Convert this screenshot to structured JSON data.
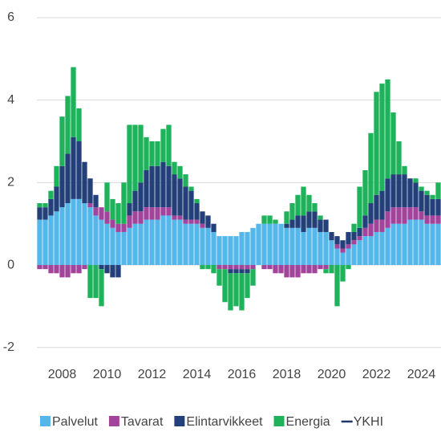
{
  "chart_data": {
    "type": "bar",
    "categories": [
      null,
      null,
      null,
      null,
      "2008",
      null,
      null,
      null,
      null,
      null,
      null,
      null,
      "2010",
      null,
      null,
      null,
      null,
      null,
      null,
      null,
      "2012",
      null,
      null,
      null,
      null,
      null,
      null,
      null,
      "2014",
      null,
      null,
      null,
      null,
      null,
      null,
      null,
      "2016",
      null,
      null,
      null,
      null,
      null,
      null,
      null,
      "2018",
      null,
      null,
      null,
      null,
      null,
      null,
      null,
      "2020",
      null,
      null,
      null,
      null,
      null,
      null,
      null,
      "2022",
      null,
      null,
      null,
      null,
      null,
      null,
      null,
      "2024",
      null,
      null,
      null
    ],
    "ylim": [
      -2.2,
      6.2
    ],
    "yticks": [
      -2,
      0,
      2,
      4,
      6
    ],
    "grid": true,
    "legend": "bottom",
    "stacked": true,
    "series": [
      {
        "name": "Palvelut",
        "type": "bar",
        "color": "#55b6ea",
        "values": [
          1.1,
          1.1,
          1.2,
          1.3,
          1.4,
          1.5,
          1.6,
          1.6,
          1.5,
          1.4,
          1.2,
          1.1,
          1.0,
          0.9,
          0.8,
          0.8,
          0.9,
          1.0,
          1.0,
          1.1,
          1.1,
          1.1,
          1.2,
          1.2,
          1.1,
          1.1,
          1.0,
          1.0,
          1.0,
          0.9,
          0.9,
          0.8,
          0.7,
          0.7,
          0.7,
          0.7,
          0.8,
          0.8,
          0.9,
          1.0,
          1.0,
          1.0,
          1.0,
          1.0,
          0.9,
          0.9,
          0.9,
          0.8,
          0.9,
          0.9,
          0.8,
          0.8,
          0.6,
          0.4,
          0.3,
          0.4,
          0.5,
          0.6,
          0.7,
          0.7,
          0.8,
          0.8,
          0.9,
          1.0,
          1.0,
          1.0,
          1.1,
          1.1,
          1.1,
          1.0,
          1.0,
          1.0
        ]
      },
      {
        "name": "Tavarat",
        "type": "bar",
        "color": "#a3449c",
        "values": [
          -0.1,
          -0.1,
          -0.2,
          -0.2,
          -0.3,
          -0.3,
          -0.2,
          -0.2,
          -0.1,
          0.1,
          0.2,
          0.3,
          0.3,
          0.2,
          0.2,
          0.2,
          0.3,
          0.3,
          0.3,
          0.3,
          0.3,
          0.3,
          0.2,
          0.2,
          0.1,
          0.1,
          0.1,
          0.1,
          0.1,
          0.1,
          0.0,
          0.0,
          -0.1,
          -0.1,
          -0.1,
          -0.1,
          -0.1,
          -0.1,
          -0.1,
          0.0,
          -0.1,
          -0.1,
          -0.2,
          -0.2,
          -0.3,
          -0.3,
          -0.3,
          -0.2,
          -0.2,
          -0.2,
          -0.1,
          -0.1,
          0.0,
          0.1,
          0.1,
          0.1,
          0.1,
          0.1,
          0.2,
          0.3,
          0.3,
          0.3,
          0.4,
          0.4,
          0.4,
          0.4,
          0.3,
          0.3,
          0.2,
          0.2,
          0.2,
          0.2
        ]
      },
      {
        "name": "Elintarvikkeet",
        "type": "bar",
        "color": "#24407a",
        "values": [
          0.3,
          0.3,
          0.4,
          0.6,
          1.0,
          1.2,
          1.5,
          1.4,
          1.0,
          0.6,
          0.3,
          -0.1,
          -0.2,
          -0.3,
          -0.3,
          0.0,
          0.3,
          0.5,
          0.7,
          0.9,
          1.0,
          1.0,
          1.1,
          1.0,
          1.0,
          0.9,
          0.8,
          0.7,
          0.4,
          0.3,
          0.3,
          0.2,
          0.0,
          0.0,
          -0.1,
          -0.1,
          -0.1,
          -0.1,
          0.0,
          0.0,
          0.0,
          0.0,
          0.0,
          0.0,
          0.1,
          0.2,
          0.3,
          0.4,
          0.4,
          0.4,
          0.3,
          0.3,
          0.2,
          0.2,
          0.2,
          0.3,
          0.2,
          0.2,
          0.3,
          0.5,
          0.6,
          0.7,
          0.8,
          0.8,
          0.8,
          0.8,
          0.7,
          0.6,
          0.5,
          0.5,
          0.4,
          0.4
        ]
      },
      {
        "name": "Energia",
        "type": "bar",
        "color": "#1eb35a",
        "values": [
          0.1,
          0.1,
          0.2,
          0.5,
          1.2,
          1.4,
          1.7,
          0.8,
          0.0,
          -0.8,
          -0.8,
          -0.9,
          0.7,
          0.5,
          0.5,
          1.0,
          1.9,
          1.6,
          1.4,
          0.8,
          0.6,
          0.6,
          0.8,
          1.0,
          0.3,
          0.3,
          0.3,
          0.1,
          0.1,
          -0.1,
          -0.1,
          -0.2,
          -0.4,
          -0.8,
          -0.9,
          -0.8,
          -0.9,
          -0.6,
          -0.4,
          0.0,
          0.2,
          0.2,
          0.1,
          0.0,
          0.3,
          0.4,
          0.5,
          0.7,
          0.4,
          0.2,
          0.1,
          -0.1,
          -0.2,
          -1.0,
          -0.4,
          -0.1,
          0.2,
          1.0,
          1.1,
          1.7,
          2.5,
          2.6,
          2.4,
          1.5,
          0.8,
          0.2,
          0.0,
          0.1,
          0.1,
          0.1,
          0.1,
          0.4
        ]
      },
      {
        "name": "YKHI",
        "type": "line",
        "color": "#1d3766",
        "values": [
          1.4,
          1.4,
          1.6,
          2.2,
          3.3,
          3.8,
          4.6,
          3.6,
          2.3,
          1.6,
          1.2,
          1.3,
          1.4,
          1.3,
          1.2,
          2.0,
          3.4,
          3.4,
          3.4,
          3.1,
          3.0,
          3.0,
          3.3,
          3.4,
          2.5,
          2.4,
          2.2,
          1.9,
          1.6,
          1.4,
          1.2,
          1.1,
          0.2,
          -0.2,
          -0.4,
          -0.3,
          -0.4,
          -0.2,
          0.2,
          0.5,
          0.8,
          1.0,
          0.8,
          0.7,
          0.9,
          1.0,
          1.3,
          1.4,
          1.3,
          1.2,
          1.1,
          0.9,
          0.8,
          0.0,
          0.1,
          0.3,
          1.0,
          1.9,
          2.3,
          3.2,
          4.2,
          4.4,
          4.5,
          3.7,
          3.0,
          2.4,
          2.1,
          2.1,
          1.9,
          1.8,
          1.7,
          2.0
        ]
      }
    ]
  }
}
